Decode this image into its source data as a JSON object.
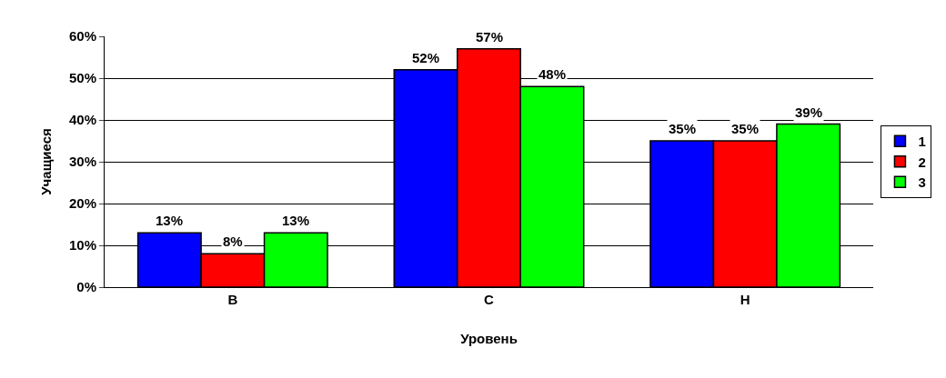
{
  "chart_data": {
    "type": "bar",
    "xlabel": "Уровень",
    "ylabel": "Учащиеся",
    "categories": [
      "В",
      "С",
      "Н"
    ],
    "series": [
      {
        "name": "1",
        "color": "#0000ff",
        "values": [
          13,
          52,
          35
        ],
        "value_labels": [
          "13%",
          "52%",
          "35%"
        ]
      },
      {
        "name": "2",
        "color": "#ff0000",
        "values": [
          8,
          57,
          35
        ],
        "value_labels": [
          "8%",
          "57%",
          "35%"
        ]
      },
      {
        "name": "3",
        "color": "#00ff00",
        "values": [
          13,
          48,
          39
        ],
        "value_labels": [
          "13%",
          "48%",
          "39%"
        ]
      }
    ],
    "ylim": [
      0,
      60
    ],
    "yticks": [
      {
        "value": 0,
        "label": "0%"
      },
      {
        "value": 10,
        "label": "10%"
      },
      {
        "value": 20,
        "label": "20%"
      },
      {
        "value": 30,
        "label": "30%"
      },
      {
        "value": 40,
        "label": "40%"
      },
      {
        "value": 50,
        "label": "50%"
      },
      {
        "value": 60,
        "label": "60%"
      }
    ],
    "grid": "y",
    "legend": "right"
  }
}
